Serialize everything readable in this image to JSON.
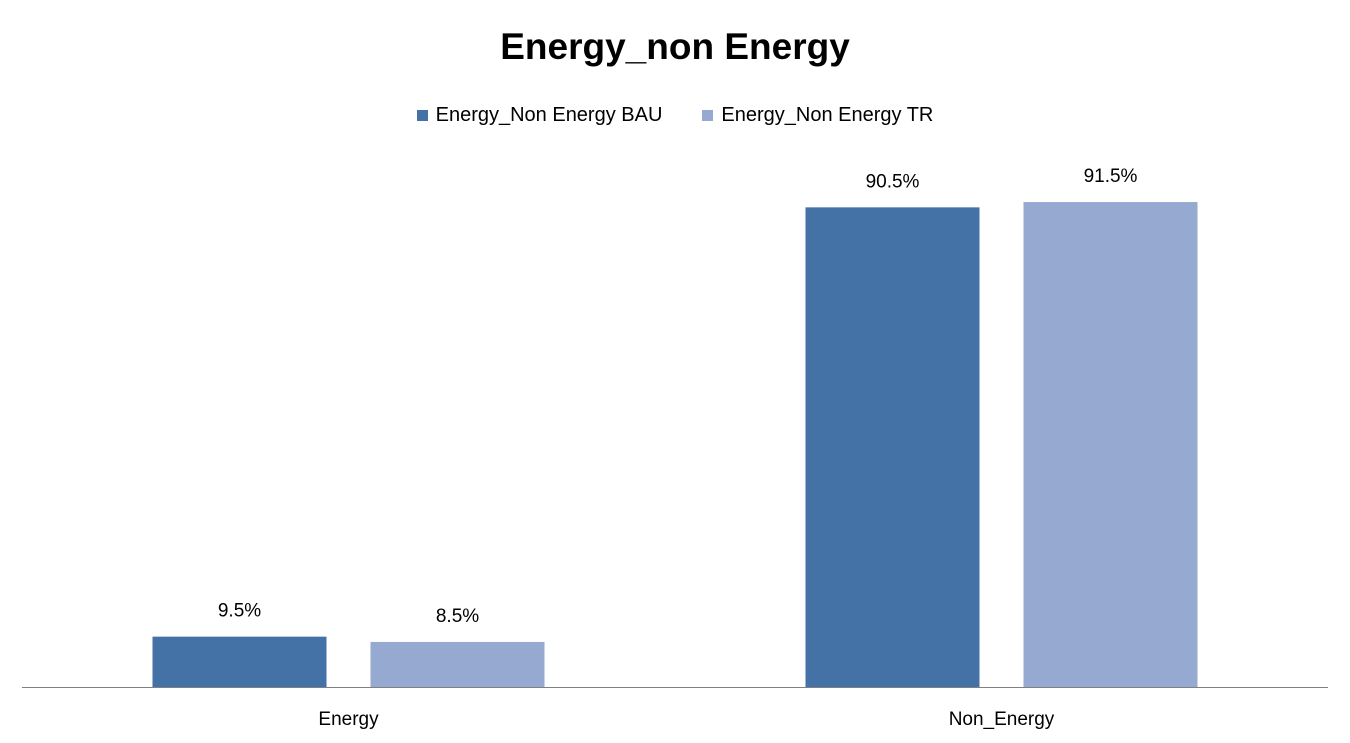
{
  "chart_data": {
    "type": "bar",
    "title": "Energy_non Energy",
    "categories": [
      "Energy",
      "Non_Energy"
    ],
    "series": [
      {
        "name": "Energy_Non Energy BAU",
        "values": [
          9.5,
          90.5
        ],
        "labels": [
          "9.5%",
          "90.5%"
        ],
        "color": "#4472A6"
      },
      {
        "name": "Energy_Non Energy TR",
        "values": [
          8.5,
          91.5
        ],
        "labels": [
          "8.5%",
          "91.5%"
        ],
        "color": "#95A9D1"
      }
    ],
    "xlabel": "",
    "ylabel": "",
    "ylim": [
      0,
      100
    ],
    "grid": false,
    "legend_position": "top"
  }
}
